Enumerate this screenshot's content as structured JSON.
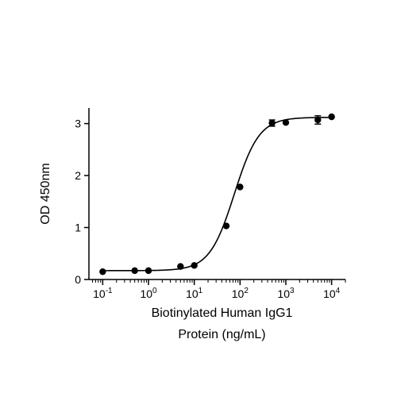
{
  "chart_data": {
    "type": "scatter",
    "xlabel_lines": [
      "Biotinylated Human IgG1",
      "Protein (ng/mL)"
    ],
    "ylabel": "OD 450nm",
    "x_scale": "log",
    "xlim": [
      0.05,
      20000
    ],
    "ylim": [
      0,
      3.3
    ],
    "x_tick_labels": [
      {
        "base": "10",
        "exp": "-1",
        "value": 0.1
      },
      {
        "base": "10",
        "exp": "0",
        "value": 1
      },
      {
        "base": "10",
        "exp": "1",
        "value": 10
      },
      {
        "base": "10",
        "exp": "2",
        "value": 100
      },
      {
        "base": "10",
        "exp": "3",
        "value": 1000
      },
      {
        "base": "10",
        "exp": "4",
        "value": 10000
      }
    ],
    "y_ticks": [
      0,
      1,
      2,
      3
    ],
    "grid": false,
    "series": [
      {
        "x": [
          0.1,
          0.5,
          1,
          5,
          10,
          50,
          100,
          500,
          1000,
          5000,
          10000
        ],
        "y": [
          0.15,
          0.17,
          0.17,
          0.25,
          0.27,
          1.03,
          1.78,
          3.01,
          3.02,
          3.07,
          3.13
        ],
        "y_err": [
          0.01,
          0.01,
          0.01,
          0.01,
          0.01,
          0.02,
          0.02,
          0.06,
          0.02,
          0.08,
          0.02
        ]
      }
    ],
    "fit_curve": {
      "model": "4PL",
      "bottom": 0.17,
      "top": 3.12,
      "ec50": 75,
      "hill": 1.6
    }
  }
}
